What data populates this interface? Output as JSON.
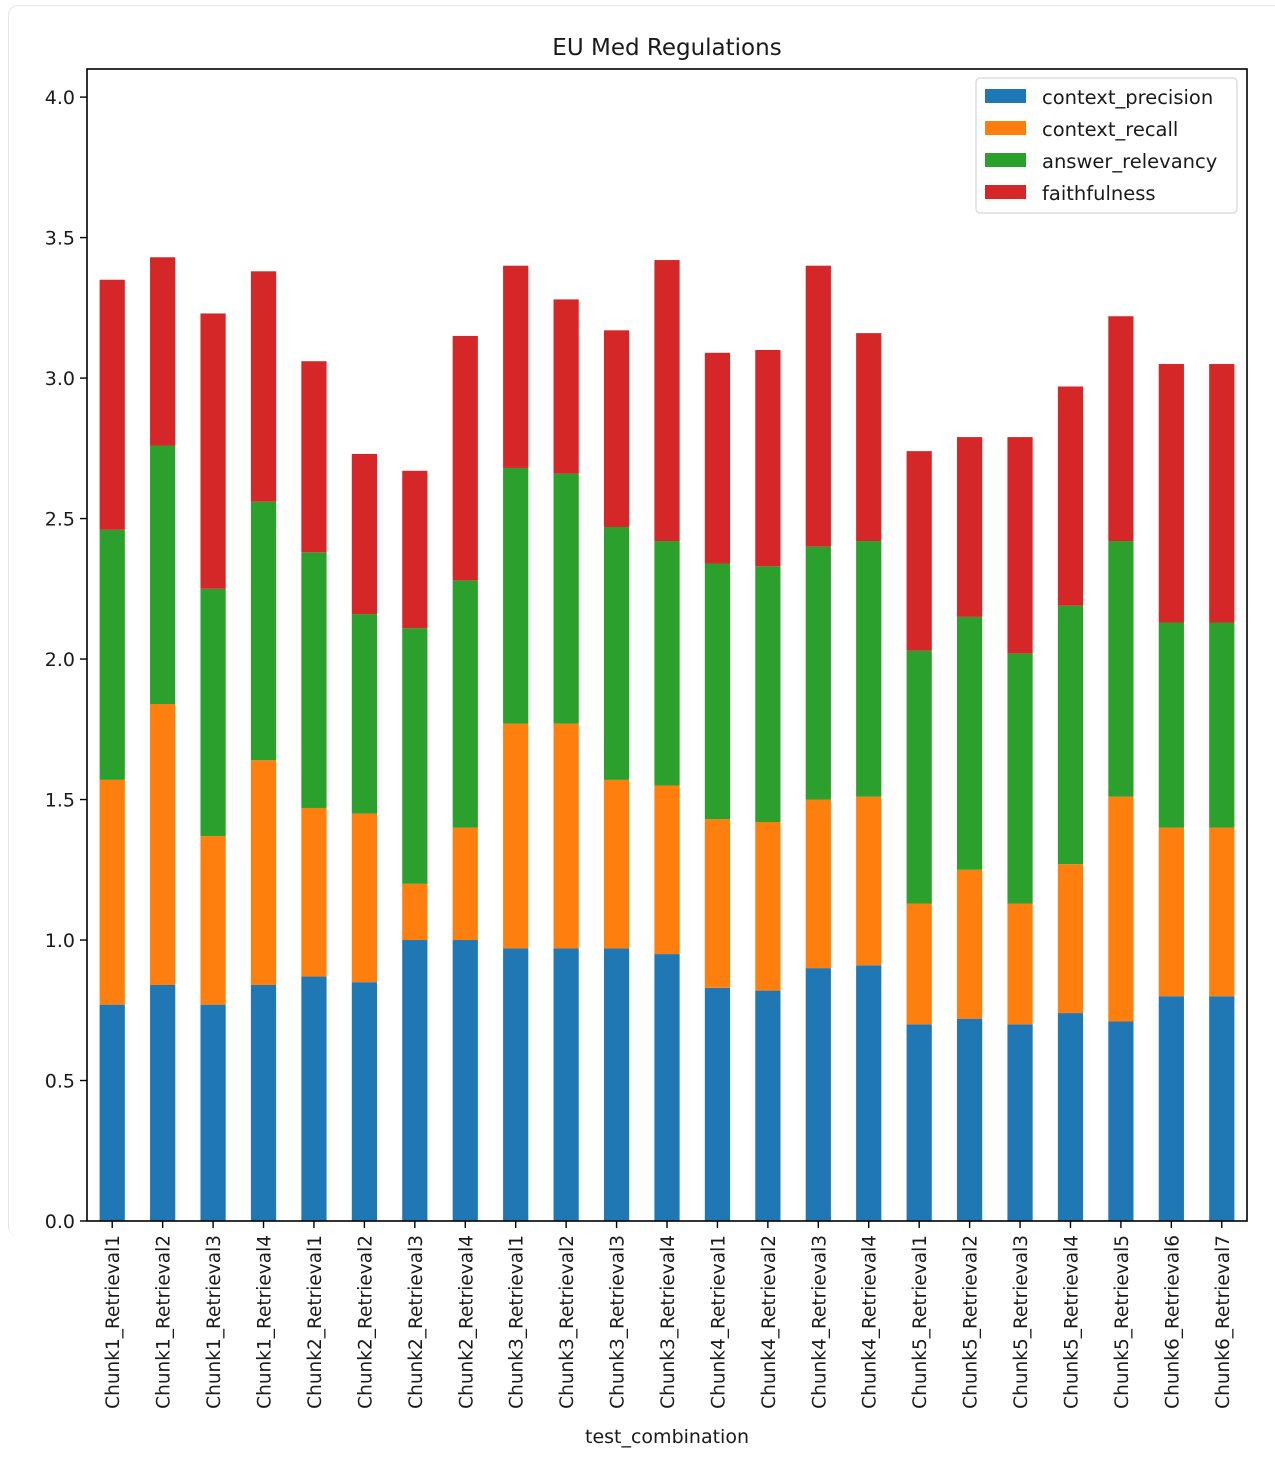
{
  "chart_data": {
    "type": "bar",
    "stacked": true,
    "title": "EU Med Regulations",
    "xlabel": "test_combination",
    "ylabel": "",
    "ylim": [
      0,
      4.1
    ],
    "yticks": [
      0.0,
      0.5,
      1.0,
      1.5,
      2.0,
      2.5,
      3.0,
      3.5,
      4.0
    ],
    "ytick_labels": [
      "0.0",
      "0.5",
      "1.0",
      "1.5",
      "2.0",
      "2.5",
      "3.0",
      "3.5",
      "4.0"
    ],
    "grid": false,
    "legend_position": "top-right",
    "categories": [
      "Chunk1_Retrieval1",
      "Chunk1_Retrieval2",
      "Chunk1_Retrieval3",
      "Chunk1_Retrieval4",
      "Chunk2_Retrieval1",
      "Chunk2_Retrieval2",
      "Chunk2_Retrieval3",
      "Chunk2_Retrieval4",
      "Chunk3_Retrieval1",
      "Chunk3_Retrieval2",
      "Chunk3_Retrieval3",
      "Chunk3_Retrieval4",
      "Chunk4_Retrieval1",
      "Chunk4_Retrieval2",
      "Chunk4_Retrieval3",
      "Chunk4_Retrieval4",
      "Chunk5_Retrieval1",
      "Chunk5_Retrieval2",
      "Chunk5_Retrieval3",
      "Chunk5_Retrieval4",
      "Chunk5_Retrieval5",
      "Chunk6_Retrieval6",
      "Chunk6_Retrieval7"
    ],
    "series": [
      {
        "name": "context_precision",
        "color": "#1f77b4",
        "values": [
          0.77,
          0.84,
          0.77,
          0.84,
          0.87,
          0.85,
          1.0,
          1.0,
          0.97,
          0.97,
          0.97,
          0.95,
          0.83,
          0.82,
          0.9,
          0.91,
          0.7,
          0.72,
          0.7,
          0.74,
          0.71,
          0.8,
          0.8
        ]
      },
      {
        "name": "context_recall",
        "color": "#ff7f0e",
        "values": [
          0.8,
          1.0,
          0.6,
          0.8,
          0.6,
          0.6,
          0.2,
          0.4,
          0.8,
          0.8,
          0.6,
          0.6,
          0.6,
          0.6,
          0.6,
          0.6,
          0.43,
          0.53,
          0.43,
          0.53,
          0.8,
          0.6,
          0.6
        ]
      },
      {
        "name": "answer_relevancy",
        "color": "#2ca02c",
        "values": [
          0.89,
          0.92,
          0.88,
          0.92,
          0.91,
          0.71,
          0.91,
          0.88,
          0.91,
          0.89,
          0.9,
          0.87,
          0.91,
          0.91,
          0.9,
          0.91,
          0.9,
          0.9,
          0.89,
          0.92,
          0.91,
          0.73,
          0.73
        ]
      },
      {
        "name": "faithfulness",
        "color": "#d62728",
        "values": [
          0.89,
          0.67,
          0.98,
          0.82,
          0.68,
          0.57,
          0.56,
          0.87,
          0.72,
          0.62,
          0.7,
          1.0,
          0.75,
          0.77,
          1.0,
          0.74,
          0.71,
          0.64,
          0.77,
          0.78,
          0.8,
          0.92,
          0.92
        ]
      }
    ]
  }
}
